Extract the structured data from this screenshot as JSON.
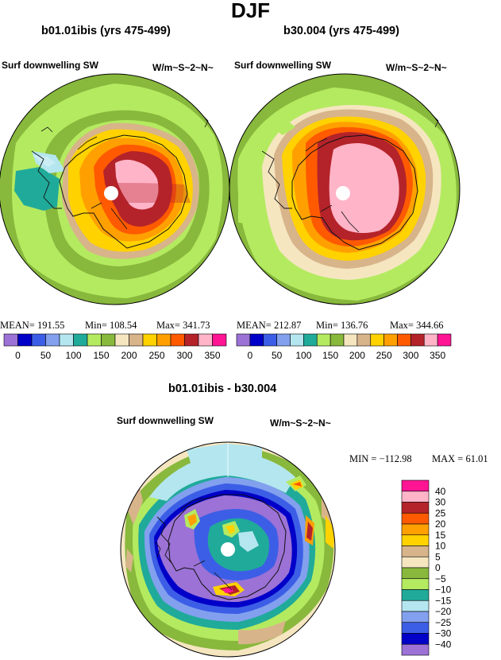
{
  "page": {
    "title": "DJF"
  },
  "panels": [
    {
      "title": "b01.01ibis (yrs 475-499)",
      "left_label": "Surf downwelling SW",
      "right_label": "W/m~S~2~N~",
      "stats": {
        "mean": "MEAN= 191.55",
        "min": "Min= 108.54",
        "max": "Max= 341.73"
      }
    },
    {
      "title": "b30.004 (yrs 475-499)",
      "left_label": "Surf downwelling SW",
      "right_label": "W/m~S~2~N~",
      "stats": {
        "mean": "MEAN= 212.87",
        "min": "Min= 136.76",
        "max": "Max= 344.66"
      }
    },
    {
      "title": "b01.01ibis - b30.004",
      "left_label": "Surf downwelling SW",
      "right_label": "W/m~S~2~N~",
      "stats": {
        "min": "MIN = −112.98",
        "max": "MAX =   61.01"
      }
    }
  ],
  "colorbars": {
    "absolute": {
      "colors": [
        "#9c72d6",
        "#0000c8",
        "#3c5ee6",
        "#82a0ee",
        "#b4e6f0",
        "#20aa9a",
        "#b4ea60",
        "#88b83c",
        "#f5e6c0",
        "#d8b48a",
        "#ffd200",
        "#ffa000",
        "#ff5a00",
        "#b4232a",
        "#ffb4c8",
        "#ff1493"
      ],
      "tick_labels": [
        "0",
        "50",
        "100",
        "150",
        "200",
        "250",
        "300",
        "350"
      ]
    },
    "difference": {
      "colors": [
        "#ff1493",
        "#ffb4c8",
        "#b4232a",
        "#ff5a00",
        "#ffa000",
        "#ffd200",
        "#d8b48a",
        "#f5e6c0",
        "#88b83c",
        "#b4ea60",
        "#20aa9a",
        "#b4e6f0",
        "#82a0ee",
        "#3c5ee6",
        "#0000c8",
        "#9c72d6"
      ],
      "tick_labels": [
        "40",
        "30",
        "25",
        "20",
        "15",
        "10",
        "5",
        "0",
        "−5",
        "−10",
        "−15",
        "−20",
        "−25",
        "−30",
        "−40"
      ]
    }
  },
  "chart_data": [
    {
      "type": "heatmap",
      "title": "b01.01ibis (yrs 475-499)",
      "projection": "south polar stereographic",
      "variable": "Surf downwelling SW",
      "units": "W/m~S~2~N~",
      "mean": 191.55,
      "min": 108.54,
      "max": 341.73,
      "colorbar_levels": [
        0,
        25,
        50,
        75,
        100,
        125,
        150,
        175,
        200,
        225,
        250,
        275,
        300,
        325,
        350
      ]
    },
    {
      "type": "heatmap",
      "title": "b30.004 (yrs 475-499)",
      "projection": "south polar stereographic",
      "variable": "Surf downwelling SW",
      "units": "W/m~S~2~N~",
      "mean": 212.87,
      "min": 136.76,
      "max": 344.66,
      "colorbar_levels": [
        0,
        25,
        50,
        75,
        100,
        125,
        150,
        175,
        200,
        225,
        250,
        275,
        300,
        325,
        350
      ]
    },
    {
      "type": "heatmap",
      "title": "b01.01ibis - b30.004",
      "projection": "south polar stereographic",
      "variable": "Surf downwelling SW",
      "units": "W/m~S~2~N~",
      "min": -112.98,
      "max": 61.01,
      "colorbar_levels": [
        40,
        30,
        25,
        20,
        15,
        10,
        5,
        0,
        -5,
        -10,
        -15,
        -20,
        -25,
        -30,
        -40
      ]
    }
  ]
}
